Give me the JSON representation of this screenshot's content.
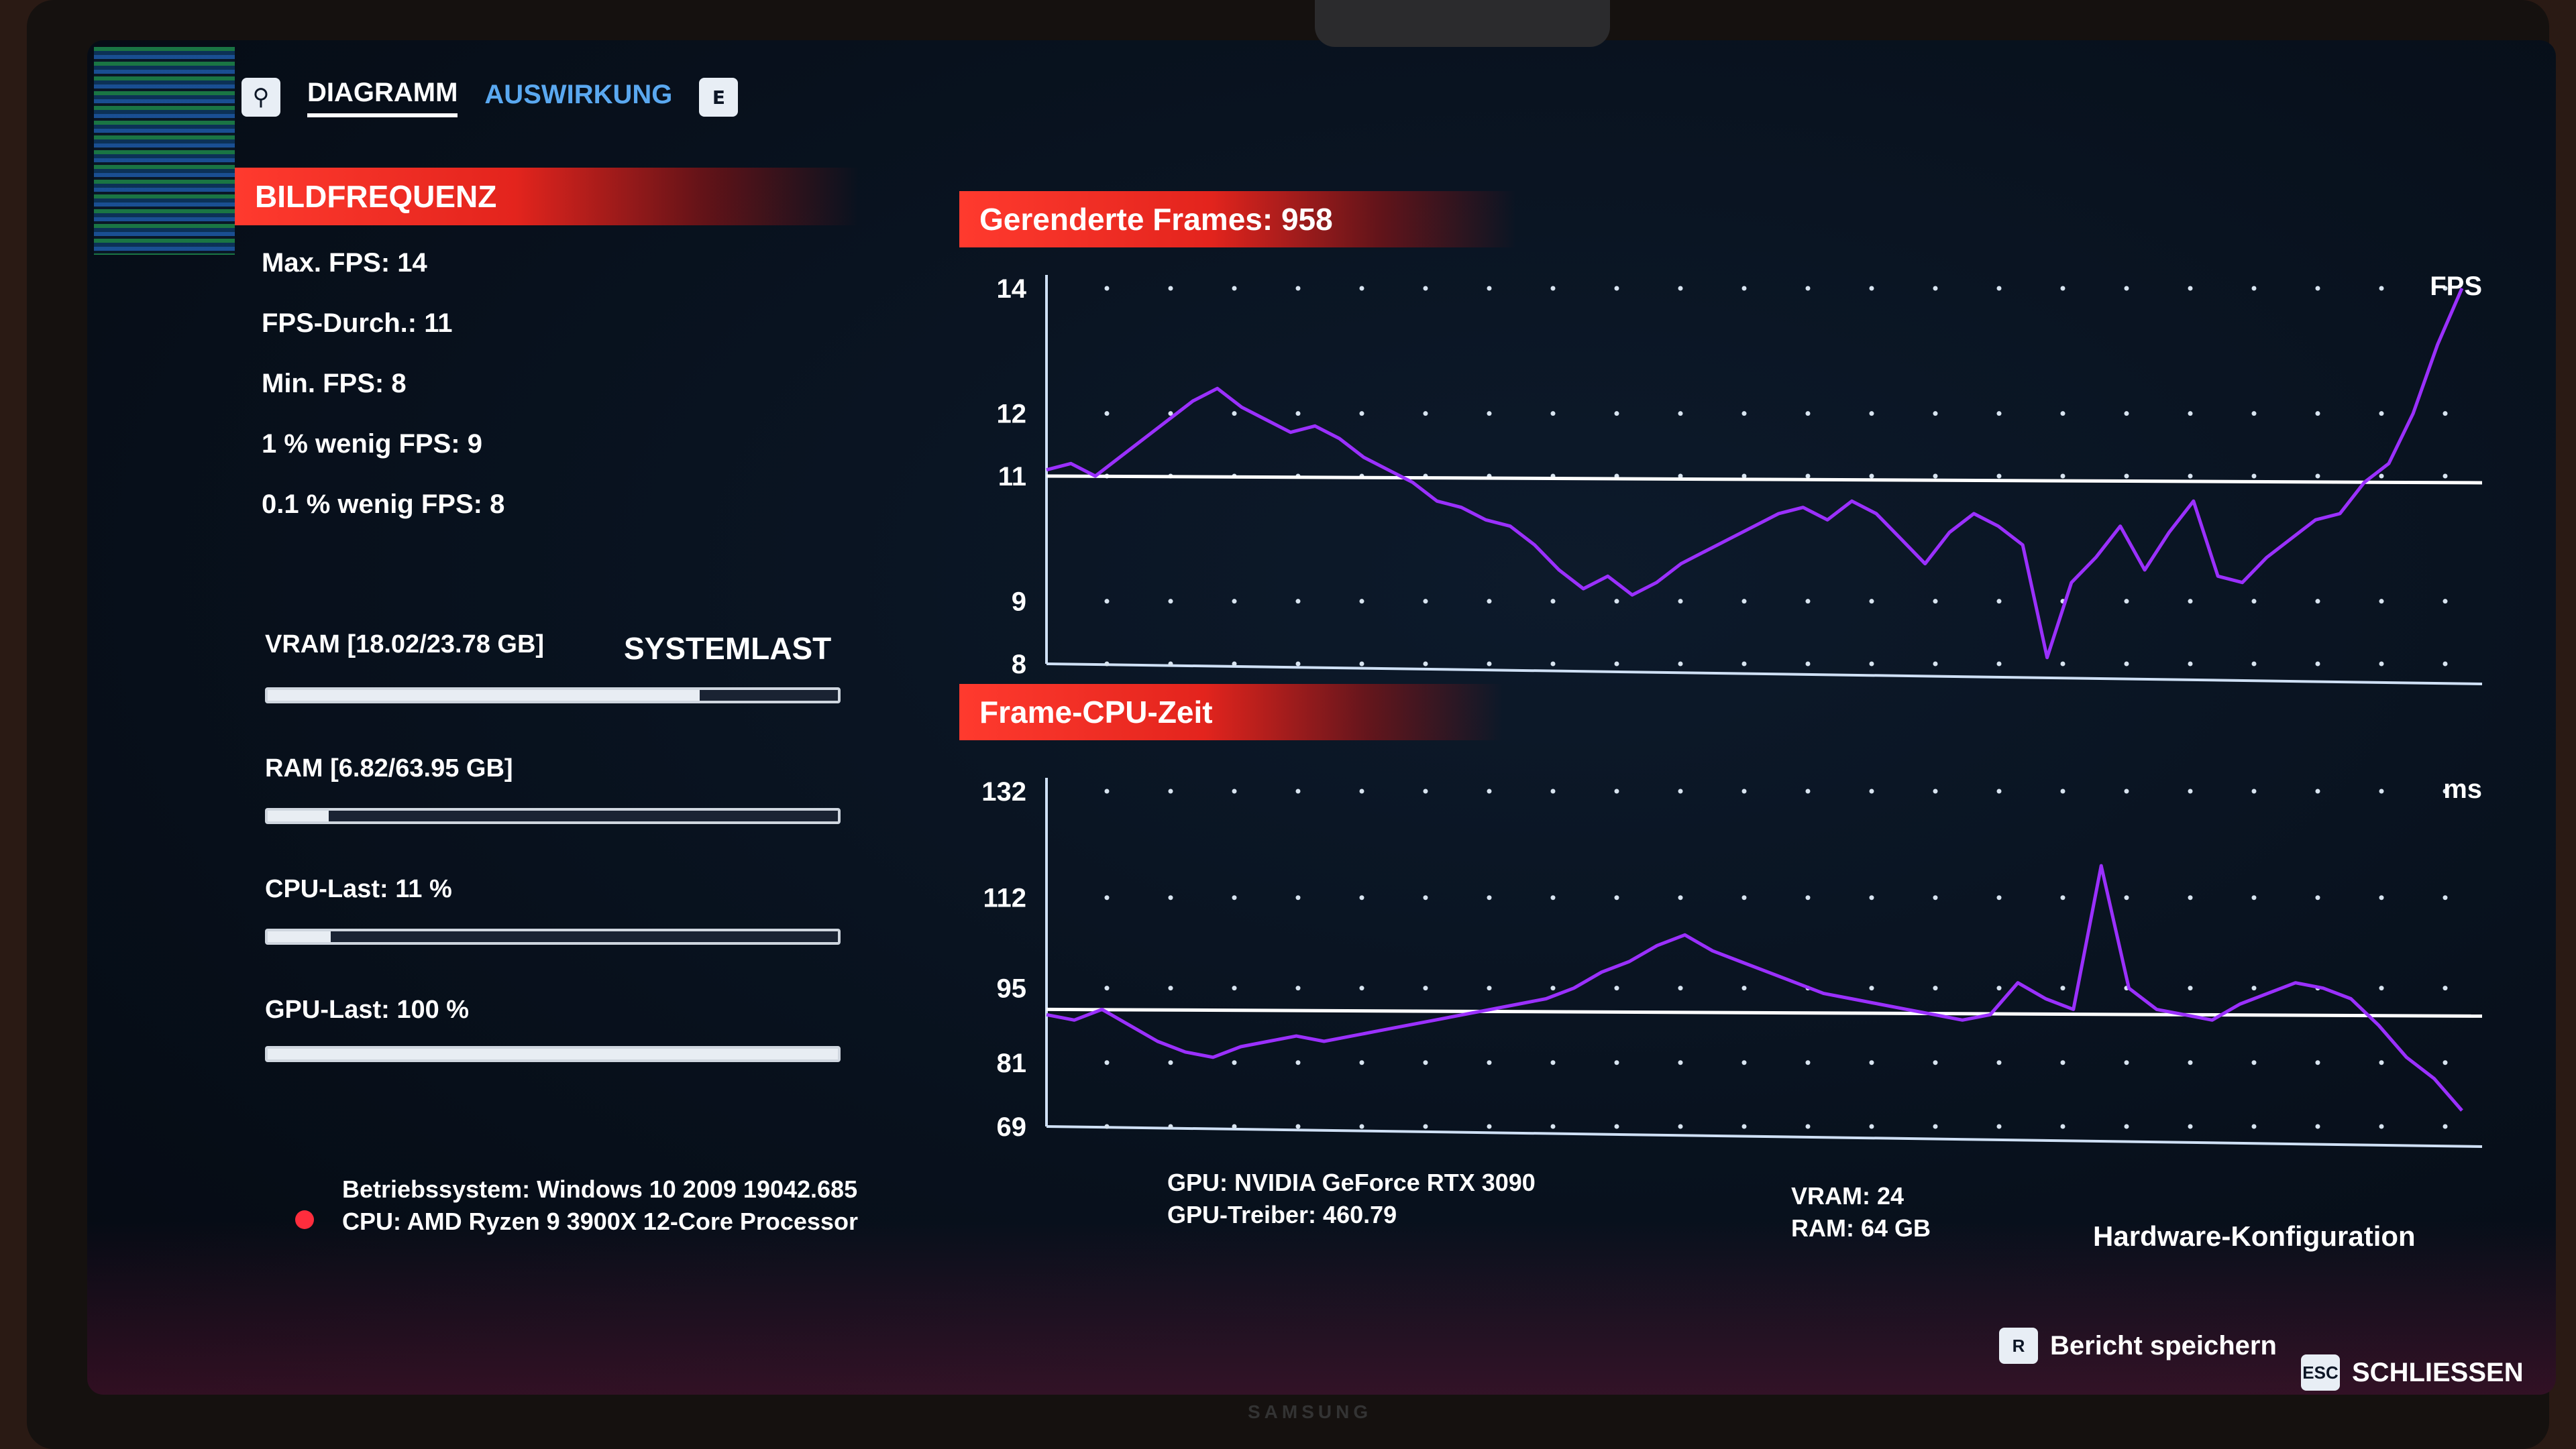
{
  "tabs": [
    {
      "label": "DIAGRAMM",
      "active": true
    },
    {
      "label": "AUSWIRKUNG",
      "active": false
    }
  ],
  "tab_icons": {
    "left": "search-icon",
    "right_key": "E"
  },
  "framerate": {
    "title": "BILDFREQUENZ",
    "max": "Max. FPS: 14",
    "avg": "FPS-Durch.: 11",
    "min": "Min. FPS: 8",
    "low1": "1 % wenig FPS: 9",
    "low01": "0.1 % wenig FPS: 8"
  },
  "systemload": {
    "title": "SYSTEMLAST",
    "vram": {
      "label": "VRAM [18.02/23.78 GB]",
      "value": 0.758
    },
    "ram": {
      "label": "RAM [6.82/63.95 GB]",
      "value": 0.107
    },
    "cpu": {
      "label": "CPU-Last: 11 %",
      "value": 0.11
    },
    "gpu": {
      "label": "GPU-Last: 100 %",
      "value": 1.0
    }
  },
  "chart_data": [
    {
      "type": "line",
      "title": "Gerenderte Frames: 958",
      "unit_label": "FPS",
      "yticks": [
        "14",
        "12",
        "11",
        "9",
        "8"
      ],
      "ytick_values": [
        14,
        12,
        11,
        9,
        8
      ],
      "ylim": [
        8,
        14
      ],
      "average_line": 11,
      "series_color": "#9b30ff",
      "values": [
        11.1,
        11.2,
        11.0,
        11.3,
        11.6,
        11.9,
        12.2,
        12.4,
        12.1,
        11.9,
        11.7,
        11.8,
        11.6,
        11.3,
        11.1,
        10.9,
        10.6,
        10.5,
        10.3,
        10.2,
        9.9,
        9.5,
        9.2,
        9.4,
        9.1,
        9.3,
        9.6,
        9.8,
        10.0,
        10.2,
        10.4,
        10.5,
        10.3,
        10.6,
        10.4,
        10.0,
        9.6,
        10.1,
        10.4,
        10.2,
        9.9,
        8.1,
        9.3,
        9.7,
        10.2,
        9.5,
        10.1,
        10.6,
        9.4,
        9.3,
        9.7,
        10.0,
        10.3,
        10.4,
        10.9,
        11.2,
        12.0,
        13.1,
        14.0
      ]
    },
    {
      "type": "line",
      "title": "Frame-CPU-Zeit",
      "unit_label": "ms",
      "yticks": [
        "132",
        "112",
        "95",
        "81",
        "69"
      ],
      "ytick_values": [
        132,
        112,
        95,
        81,
        69
      ],
      "ylim": [
        69,
        132
      ],
      "average_line": 91,
      "series_color": "#9b30ff",
      "values": [
        90,
        89,
        91,
        88,
        85,
        83,
        82,
        84,
        85,
        86,
        85,
        86,
        87,
        88,
        89,
        90,
        91,
        92,
        93,
        95,
        98,
        100,
        103,
        105,
        102,
        100,
        98,
        96,
        94,
        93,
        92,
        91,
        90,
        89,
        90,
        96,
        93,
        91,
        118,
        95,
        91,
        90,
        89,
        92,
        94,
        96,
        95,
        93,
        88,
        82,
        78,
        72
      ]
    }
  ],
  "system_info": {
    "os": "Betriebssystem: Windows 10 2009 19042.685",
    "cpu": "CPU: AMD Ryzen 9 3900X 12-Core Processor",
    "gpu": "GPU: NVIDIA GeForce RTX 3090",
    "driver": "GPU-Treiber: 460.79",
    "vram": "VRAM: 24",
    "ram": "RAM: 64 GB",
    "hw_config": "Hardware-Konfiguration"
  },
  "footer": {
    "save_key": "R",
    "save_label": "Bericht speichern",
    "close_key": "ESC",
    "close_label": "SCHLIESSEN"
  },
  "brand": "SAMSUNG"
}
